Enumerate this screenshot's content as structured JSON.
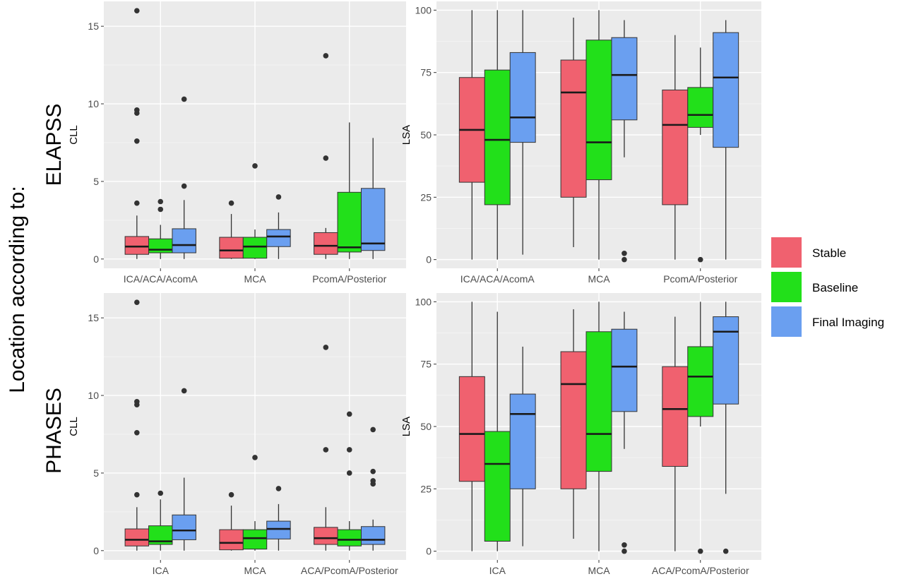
{
  "figure": {
    "overall_label": "Location according to:",
    "row_labels": [
      "ELAPSS",
      "PHASES"
    ]
  },
  "legend": {
    "items": [
      {
        "label": "Stable",
        "color": "#F0616F"
      },
      {
        "label": "Baseline",
        "color": "#22E01A"
      },
      {
        "label": "Final Imaging",
        "color": "#6A9FF0"
      }
    ]
  },
  "chart_data": [
    {
      "type": "boxplot",
      "panel": "ELAPSS-CLL",
      "ylabel": "CLL",
      "ylim": [
        -0.6,
        16.6
      ],
      "yticks": [
        0,
        5,
        10,
        15
      ],
      "categories": [
        "ICA/ACA/AcomA",
        "MCA",
        "PcomA/Posterior"
      ],
      "groups": [
        {
          "category": "ICA/ACA/AcomA",
          "boxes": [
            {
              "series": "Stable",
              "q1": 0.3,
              "median": 0.8,
              "q3": 1.45,
              "whisker_low": 0,
              "whisker_high": 2.8,
              "outliers": [
                3.6,
                7.6,
                9.4,
                9.6,
                16.0
              ]
            },
            {
              "series": "Baseline",
              "q1": 0.4,
              "median": 0.6,
              "q3": 1.3,
              "whisker_low": 0,
              "whisker_high": 2.2,
              "outliers": [
                3.2,
                3.7
              ]
            },
            {
              "series": "Final Imaging",
              "q1": 0.4,
              "median": 0.9,
              "q3": 1.95,
              "whisker_low": 0,
              "whisker_high": 3.8,
              "outliers": [
                4.7,
                10.3
              ]
            }
          ]
        },
        {
          "category": "MCA",
          "boxes": [
            {
              "series": "Stable",
              "q1": 0.05,
              "median": 0.55,
              "q3": 1.4,
              "whisker_low": 0,
              "whisker_high": 2.9,
              "outliers": [
                3.6
              ]
            },
            {
              "series": "Baseline",
              "q1": 0.05,
              "median": 0.8,
              "q3": 1.4,
              "whisker_low": 0,
              "whisker_high": 1.9,
              "outliers": [
                6.0
              ]
            },
            {
              "series": "Final Imaging",
              "q1": 0.8,
              "median": 1.45,
              "q3": 1.9,
              "whisker_low": 0,
              "whisker_high": 3.0,
              "outliers": [
                4.0
              ]
            }
          ]
        },
        {
          "category": "PcomA/Posterior",
          "boxes": [
            {
              "series": "Stable",
              "q1": 0.3,
              "median": 0.85,
              "q3": 1.7,
              "whisker_low": 0,
              "whisker_high": 2.0,
              "outliers": [
                6.5,
                13.1
              ]
            },
            {
              "series": "Baseline",
              "q1": 0.45,
              "median": 0.75,
              "q3": 4.3,
              "whisker_low": 0,
              "whisker_high": 8.8,
              "outliers": []
            },
            {
              "series": "Final Imaging",
              "q1": 0.55,
              "median": 1.0,
              "q3": 4.55,
              "whisker_low": 0,
              "whisker_high": 7.8,
              "outliers": []
            }
          ]
        }
      ]
    },
    {
      "type": "boxplot",
      "panel": "ELAPSS-LSA",
      "ylabel": "LSA",
      "ylim": [
        -3.5,
        103.5
      ],
      "yticks": [
        0,
        25,
        50,
        75,
        100
      ],
      "categories": [
        "ICA/ACA/AcomA",
        "MCA",
        "PcomA/Posterior"
      ],
      "groups": [
        {
          "category": "ICA/ACA/AcomA",
          "boxes": [
            {
              "series": "Stable",
              "q1": 31,
              "median": 52,
              "q3": 73,
              "whisker_low": 0,
              "whisker_high": 100,
              "outliers": []
            },
            {
              "series": "Baseline",
              "q1": 22,
              "median": 48,
              "q3": 76,
              "whisker_low": 0,
              "whisker_high": 100,
              "outliers": []
            },
            {
              "series": "Final Imaging",
              "q1": 47,
              "median": 57,
              "q3": 83,
              "whisker_low": 2,
              "whisker_high": 100,
              "outliers": []
            }
          ]
        },
        {
          "category": "MCA",
          "boxes": [
            {
              "series": "Stable",
              "q1": 25,
              "median": 67,
              "q3": 80,
              "whisker_low": 5,
              "whisker_high": 97,
              "outliers": []
            },
            {
              "series": "Baseline",
              "q1": 32,
              "median": 47,
              "q3": 88,
              "whisker_low": 0,
              "whisker_high": 100,
              "outliers": []
            },
            {
              "series": "Final Imaging",
              "q1": 56,
              "median": 74,
              "q3": 89,
              "whisker_low": 41,
              "whisker_high": 96,
              "outliers": [
                0,
                2.5
              ]
            }
          ]
        },
        {
          "category": "PcomA/Posterior",
          "boxes": [
            {
              "series": "Stable",
              "q1": 22,
              "median": 54,
              "q3": 68,
              "whisker_low": 0,
              "whisker_high": 90,
              "outliers": []
            },
            {
              "series": "Baseline",
              "q1": 53,
              "median": 58,
              "q3": 69,
              "whisker_low": 50,
              "whisker_high": 85,
              "outliers": [
                0
              ]
            },
            {
              "series": "Final Imaging",
              "q1": 45,
              "median": 73,
              "q3": 91,
              "whisker_low": 0,
              "whisker_high": 96,
              "outliers": []
            }
          ]
        }
      ]
    },
    {
      "type": "boxplot",
      "panel": "PHASES-CLL",
      "ylabel": "CLL",
      "ylim": [
        -0.6,
        16.6
      ],
      "yticks": [
        0,
        5,
        10,
        15
      ],
      "categories": [
        "ICA",
        "MCA",
        "ACA/PcomA/Posterior"
      ],
      "groups": [
        {
          "category": "ICA",
          "boxes": [
            {
              "series": "Stable",
              "q1": 0.3,
              "median": 0.7,
              "q3": 1.4,
              "whisker_low": 0,
              "whisker_high": 2.8,
              "outliers": [
                3.6,
                7.6,
                9.4,
                9.6,
                16.0
              ]
            },
            {
              "series": "Baseline",
              "q1": 0.4,
              "median": 0.6,
              "q3": 1.6,
              "whisker_low": 0,
              "whisker_high": 3.3,
              "outliers": [
                3.7
              ]
            },
            {
              "series": "Final Imaging",
              "q1": 0.7,
              "median": 1.3,
              "q3": 2.3,
              "whisker_low": 0,
              "whisker_high": 4.7,
              "outliers": [
                10.3
              ]
            }
          ]
        },
        {
          "category": "MCA",
          "boxes": [
            {
              "series": "Stable",
              "q1": 0.05,
              "median": 0.5,
              "q3": 1.35,
              "whisker_low": 0,
              "whisker_high": 2.9,
              "outliers": [
                3.6
              ]
            },
            {
              "series": "Baseline",
              "q1": 0.1,
              "median": 0.8,
              "q3": 1.35,
              "whisker_low": 0,
              "whisker_high": 1.9,
              "outliers": [
                6.0
              ]
            },
            {
              "series": "Final Imaging",
              "q1": 0.75,
              "median": 1.4,
              "q3": 1.9,
              "whisker_low": 0,
              "whisker_high": 3.0,
              "outliers": [
                4.0
              ]
            }
          ]
        },
        {
          "category": "ACA/PcomA/Posterior",
          "boxes": [
            {
              "series": "Stable",
              "q1": 0.4,
              "median": 0.8,
              "q3": 1.5,
              "whisker_low": 0,
              "whisker_high": 2.8,
              "outliers": [
                6.5,
                13.1
              ]
            },
            {
              "series": "Baseline",
              "q1": 0.3,
              "median": 0.7,
              "q3": 1.35,
              "whisker_low": 0,
              "whisker_high": 1.9,
              "outliers": [
                5.0,
                6.5,
                8.8
              ]
            },
            {
              "series": "Final Imaging",
              "q1": 0.4,
              "median": 0.7,
              "q3": 1.55,
              "whisker_low": 0,
              "whisker_high": 2.0,
              "outliers": [
                4.3,
                4.5,
                5.1,
                7.8
              ]
            }
          ]
        }
      ]
    },
    {
      "type": "boxplot",
      "panel": "PHASES-LSA",
      "ylabel": "LSA",
      "ylim": [
        -3.5,
        103.5
      ],
      "yticks": [
        0,
        25,
        50,
        75,
        100
      ],
      "categories": [
        "ICA",
        "MCA",
        "ACA/PcomA/Posterior"
      ],
      "groups": [
        {
          "category": "ICA",
          "boxes": [
            {
              "series": "Stable",
              "q1": 28,
              "median": 47,
              "q3": 70,
              "whisker_low": 0,
              "whisker_high": 100,
              "outliers": []
            },
            {
              "series": "Baseline",
              "q1": 4,
              "median": 35,
              "q3": 48,
              "whisker_low": 0,
              "whisker_high": 96,
              "outliers": []
            },
            {
              "series": "Final Imaging",
              "q1": 25,
              "median": 55,
              "q3": 63,
              "whisker_low": 2,
              "whisker_high": 82,
              "outliers": []
            }
          ]
        },
        {
          "category": "MCA",
          "boxes": [
            {
              "series": "Stable",
              "q1": 25,
              "median": 67,
              "q3": 80,
              "whisker_low": 5,
              "whisker_high": 97,
              "outliers": []
            },
            {
              "series": "Baseline",
              "q1": 32,
              "median": 47,
              "q3": 88,
              "whisker_low": 0,
              "whisker_high": 100,
              "outliers": []
            },
            {
              "series": "Final Imaging",
              "q1": 56,
              "median": 74,
              "q3": 89,
              "whisker_low": 41,
              "whisker_high": 96,
              "outliers": [
                0,
                2.5
              ]
            }
          ]
        },
        {
          "category": "ACA/PcomA/Posterior",
          "boxes": [
            {
              "series": "Stable",
              "q1": 34,
              "median": 57,
              "q3": 74,
              "whisker_low": 0,
              "whisker_high": 94,
              "outliers": []
            },
            {
              "series": "Baseline",
              "q1": 54,
              "median": 70,
              "q3": 82,
              "whisker_low": 50,
              "whisker_high": 100,
              "outliers": [
                0
              ]
            },
            {
              "series": "Final Imaging",
              "q1": 59,
              "median": 88,
              "q3": 94,
              "whisker_low": 23,
              "whisker_high": 100,
              "outliers": [
                0
              ]
            }
          ]
        }
      ]
    }
  ]
}
